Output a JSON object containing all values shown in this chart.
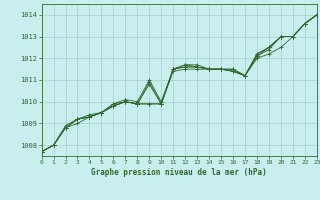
{
  "title": "Graphe pression niveau de la mer (hPa)",
  "bg_color": "#c8eeed",
  "grid_color": "#aacccc",
  "line_color": "#2d6a2d",
  "xlim": [
    0,
    23
  ],
  "ylim": [
    1007.5,
    1014.5
  ],
  "yticks": [
    1008,
    1009,
    1010,
    1011,
    1012,
    1013,
    1014
  ],
  "xticks": [
    0,
    1,
    2,
    3,
    4,
    5,
    6,
    7,
    8,
    9,
    10,
    11,
    12,
    13,
    14,
    15,
    16,
    17,
    18,
    19,
    20,
    21,
    22,
    23
  ],
  "series": [
    [
      1007.7,
      1008.0,
      1008.8,
      1009.2,
      1009.3,
      1009.5,
      1009.8,
      1010.0,
      1009.9,
      1009.9,
      1009.9,
      1011.5,
      1011.7,
      1011.6,
      1011.5,
      1011.5,
      1011.4,
      1011.2,
      1012.2,
      1012.5,
      1013.0,
      1013.0,
      1013.6,
      1014.0
    ],
    [
      1007.7,
      1008.0,
      1008.8,
      1009.2,
      1009.3,
      1009.5,
      1009.8,
      1010.0,
      1009.9,
      1009.9,
      1009.9,
      1011.4,
      1011.5,
      1011.5,
      1011.5,
      1011.5,
      1011.5,
      1011.2,
      1012.0,
      1012.2,
      1012.5,
      1013.0,
      1013.6,
      1014.0
    ],
    [
      1007.7,
      1008.0,
      1008.8,
      1009.0,
      1009.3,
      1009.5,
      1009.9,
      1010.0,
      1009.9,
      1010.9,
      1009.9,
      1011.5,
      1011.6,
      1011.6,
      1011.5,
      1011.5,
      1011.5,
      1011.2,
      1012.1,
      1012.5,
      1013.0,
      1013.0,
      1013.6,
      1014.0
    ],
    [
      1007.7,
      1008.0,
      1008.8,
      1009.2,
      1009.3,
      1009.5,
      1009.8,
      1010.0,
      1009.9,
      1010.8,
      1009.9,
      1011.5,
      1011.6,
      1011.6,
      1011.5,
      1011.5,
      1011.4,
      1011.2,
      1012.1,
      1012.4,
      1013.0,
      1013.0,
      1013.6,
      1014.0
    ],
    [
      1007.7,
      1008.0,
      1008.9,
      1009.2,
      1009.4,
      1009.5,
      1009.9,
      1010.1,
      1010.0,
      1011.0,
      1010.0,
      1011.5,
      1011.7,
      1011.7,
      1011.5,
      1011.5,
      1011.4,
      1011.2,
      1012.2,
      1012.5,
      1013.0,
      1013.0,
      1013.6,
      1014.0
    ]
  ]
}
